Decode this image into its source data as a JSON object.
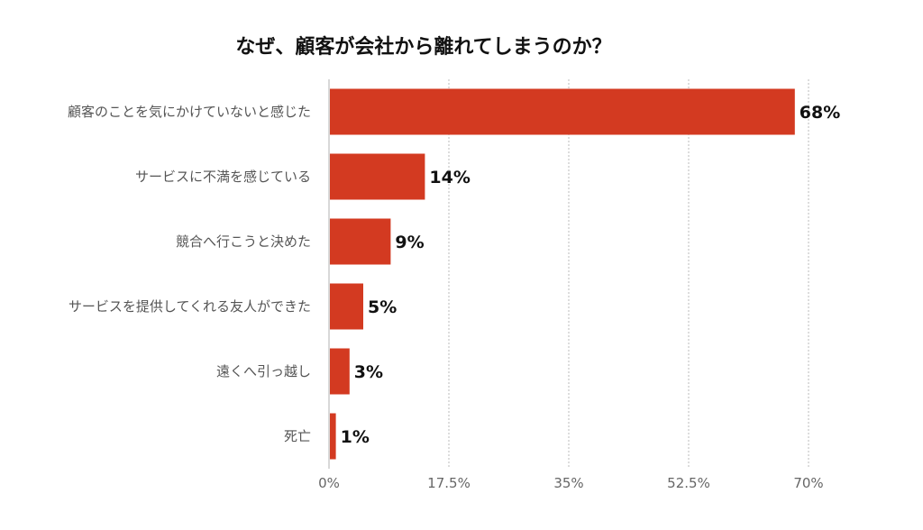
{
  "chart_data": {
    "type": "bar",
    "orientation": "horizontal",
    "title": "なぜ、顧客が会社から離れてしまうのか？",
    "categories": [
      "顧客のことを気にかけていないと感じた",
      "サービスに不満を感じている",
      "競合へ行こうと決めた",
      "サービスを提供してくれる友人ができた",
      "遠くへ引っ越し",
      "死亡"
    ],
    "values": [
      68,
      14,
      9,
      5,
      3,
      1
    ],
    "value_labels": [
      "68%",
      "14%",
      "9%",
      "5%",
      "3%",
      "1%"
    ],
    "xlim": [
      0,
      70
    ],
    "xticks": [
      0,
      17.5,
      35,
      52.5,
      70
    ],
    "xtick_labels": [
      "0%",
      "17.5%",
      "35%",
      "52.5%",
      "70%"
    ],
    "grid": "vertical dotted",
    "legend": "none",
    "bar_color": "#d33a21"
  }
}
